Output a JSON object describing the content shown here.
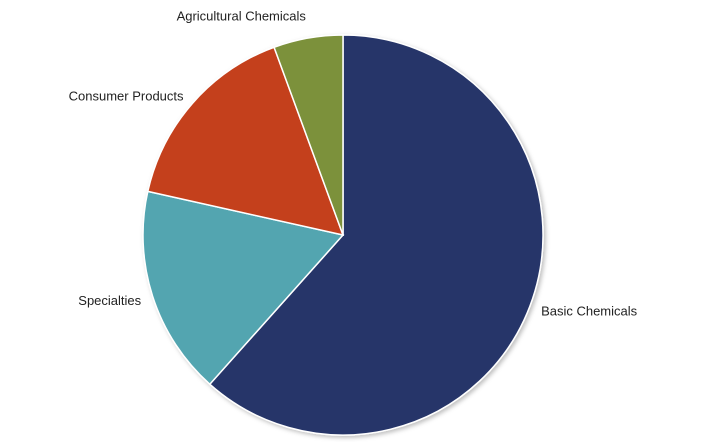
{
  "chart_data": {
    "type": "pie",
    "title": "",
    "start": "top",
    "direction": "clockwise",
    "slices": [
      {
        "label": "Basic Chemicals",
        "value": 61.6,
        "color": "#253569"
      },
      {
        "label": "Specialties",
        "value": 16.9,
        "color": "#52a5b0"
      },
      {
        "label": "Consumer Products",
        "value": 15.9,
        "color": "#c43f1a"
      },
      {
        "label": "Agricultural Chemicals",
        "value": 5.6,
        "color": "#7b913a"
      }
    ],
    "legend": "none",
    "labels": "outside"
  }
}
